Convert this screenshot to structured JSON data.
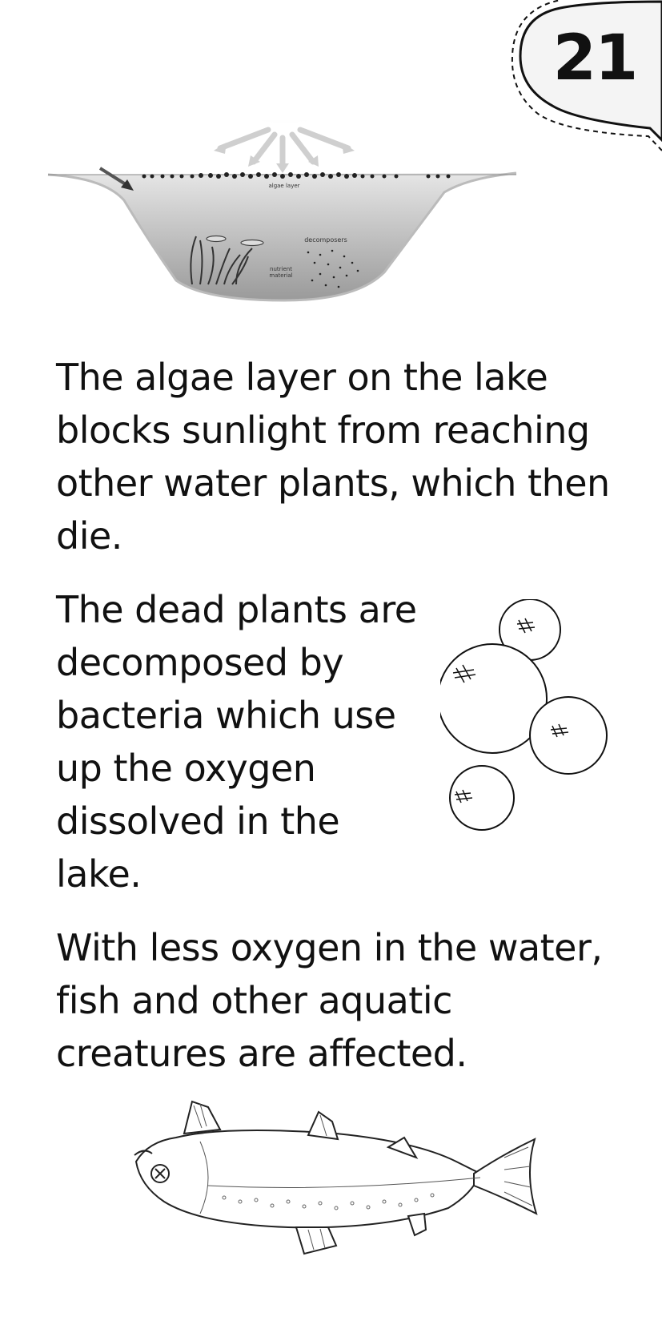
{
  "page": {
    "number": "21"
  },
  "diagram": {
    "labels": {
      "algae": "algae layer",
      "decomposers": "decomposers",
      "nutrient_line1": "nutrient",
      "nutrient_line2": "material"
    }
  },
  "paragraphs": [
    "The algae layer on the lake blocks sunlight from reaching other water plants, which then die.",
    "The dead plants are decomposed by bacteria which use up the oxygen dissolved in the lake.",
    "With less oxygen in the water, fish and other aquatic creatures are affected."
  ]
}
